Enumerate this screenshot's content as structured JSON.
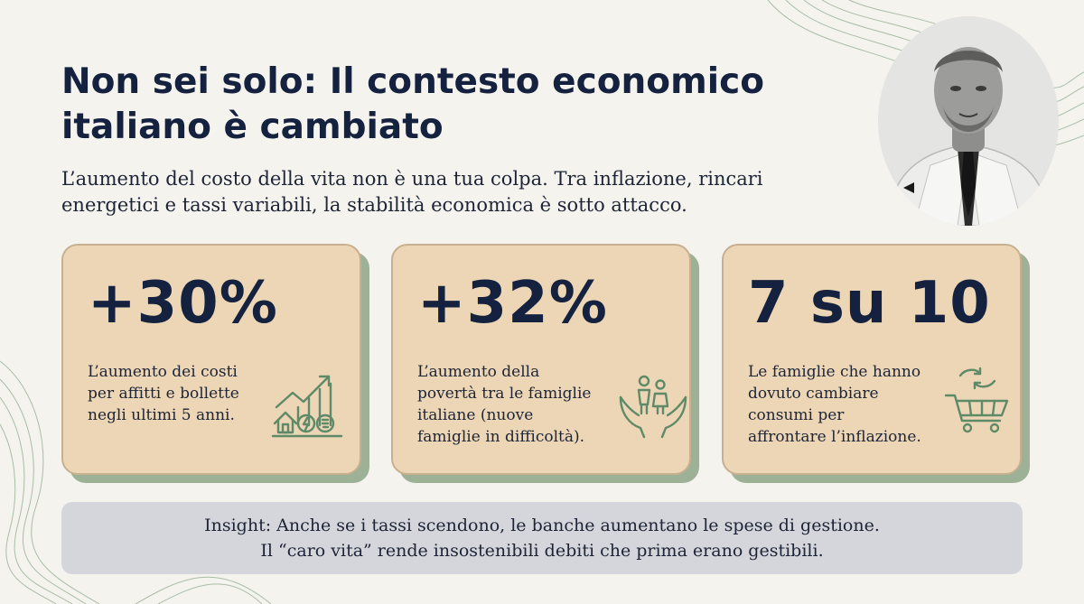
{
  "title": {
    "line1": "Non sei solo: Il contesto economico",
    "line2": "italiano è cambiato"
  },
  "subtitle": {
    "line1": "L’aumento del costo della vita non è una tua colpa. Tra inflazione, rincari",
    "line2": "energetici e tassi variabili, la stabilità economica è sotto attacco."
  },
  "cards": [
    {
      "stat": "+30%",
      "lines": [
        "L’aumento dei costi",
        "per affitti e bollette",
        "negli ultimi 5 anni."
      ],
      "icon": "house-energy-growth-icon"
    },
    {
      "stat": "+32%",
      "lines": [
        "L’aumento della",
        "povertà tra le famiglie",
        "italiane (nuove",
        "famiglie in difficoltà)."
      ],
      "icon": "family-in-hands-icon"
    },
    {
      "stat": "7 su 10",
      "lines": [
        "Le famiglie che hanno",
        "dovuto cambiare",
        "consumi per",
        "affrontare l’inflazione."
      ],
      "icon": "shopping-cart-swap-icon"
    }
  ],
  "insight": {
    "line1": "Insight: Anche se i tassi scendono, le banche aumentano le spese di gestione.",
    "line2": "Il “caro vita” rende insostenibili debiti che prima erano gestibili."
  },
  "colors": {
    "background": "#f5f3ee",
    "heading": "#14213f",
    "card_fill": "#ecd6b5",
    "card_shadow": "#9cb195",
    "icon_green": "#5f8a68",
    "insight_fill": "#d4d6db"
  }
}
